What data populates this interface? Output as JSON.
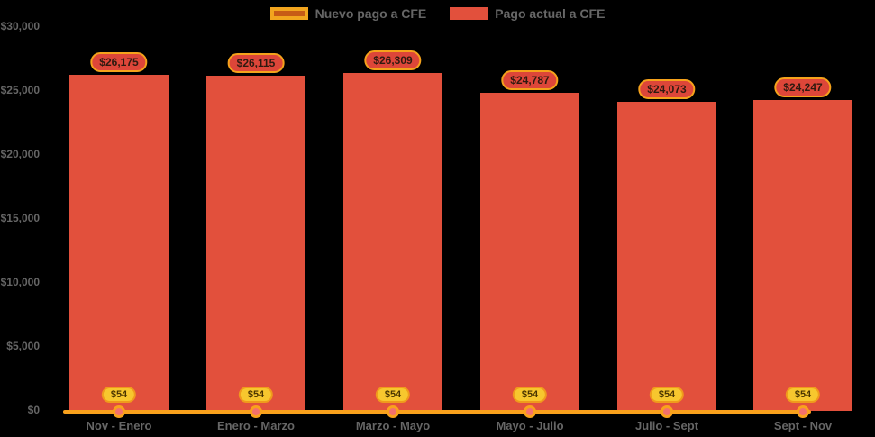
{
  "chart_data": {
    "type": "bar",
    "title": "",
    "categories": [
      "Nov - Enero",
      "Enero - Marzo",
      "Marzo - Mayo",
      "Mayo - Julio",
      "Julio - Sept",
      "Sept - Nov"
    ],
    "series": [
      {
        "name": "Nuevo pago a CFE",
        "type": "line",
        "color": "#F9A11C",
        "values": [
          54,
          54,
          54,
          54,
          54,
          54
        ]
      },
      {
        "name": "Pago actual a CFE",
        "type": "bar",
        "color": "#E2503C",
        "values": [
          26175,
          26115,
          26309,
          24787,
          24073,
          24247
        ]
      }
    ],
    "bar_value_labels": [
      "$26,175",
      "$26,115",
      "$26,309",
      "$24,787",
      "$24,073",
      "$24,247"
    ],
    "line_value_labels": [
      "$54",
      "$54",
      "$54",
      "$54",
      "$54",
      "$54"
    ],
    "ylim": [
      0,
      30000
    ],
    "yticks": [
      {
        "value": 0,
        "label": "$0"
      },
      {
        "value": 5000,
        "label": "$5,000"
      },
      {
        "value": 10000,
        "label": "$10,000"
      },
      {
        "value": 15000,
        "label": "$15,000"
      },
      {
        "value": 20000,
        "label": "$20,000"
      },
      {
        "value": 25000,
        "label": "$25,000"
      },
      {
        "value": 30000,
        "label": "$30,000"
      }
    ],
    "grid": false,
    "legend_position": "top"
  },
  "legend": {
    "items": [
      {
        "label": "Nuevo pago a CFE",
        "swatch_fill": "#C75B16",
        "swatch_border": "#F2A51E"
      },
      {
        "label": "Pago actual a CFE",
        "swatch_fill": "#E2503C"
      }
    ]
  },
  "colors": {
    "background": "#000000",
    "bar": "#E2503C",
    "line": "#F9A11C",
    "marker_center": "#F4716B",
    "value_pill_fill": "#DD4639",
    "value_pill_border": "#F5A21B",
    "badge_fill": "#F7C72E",
    "badge_border": "#F09A1C",
    "axis_text": "#666666"
  }
}
